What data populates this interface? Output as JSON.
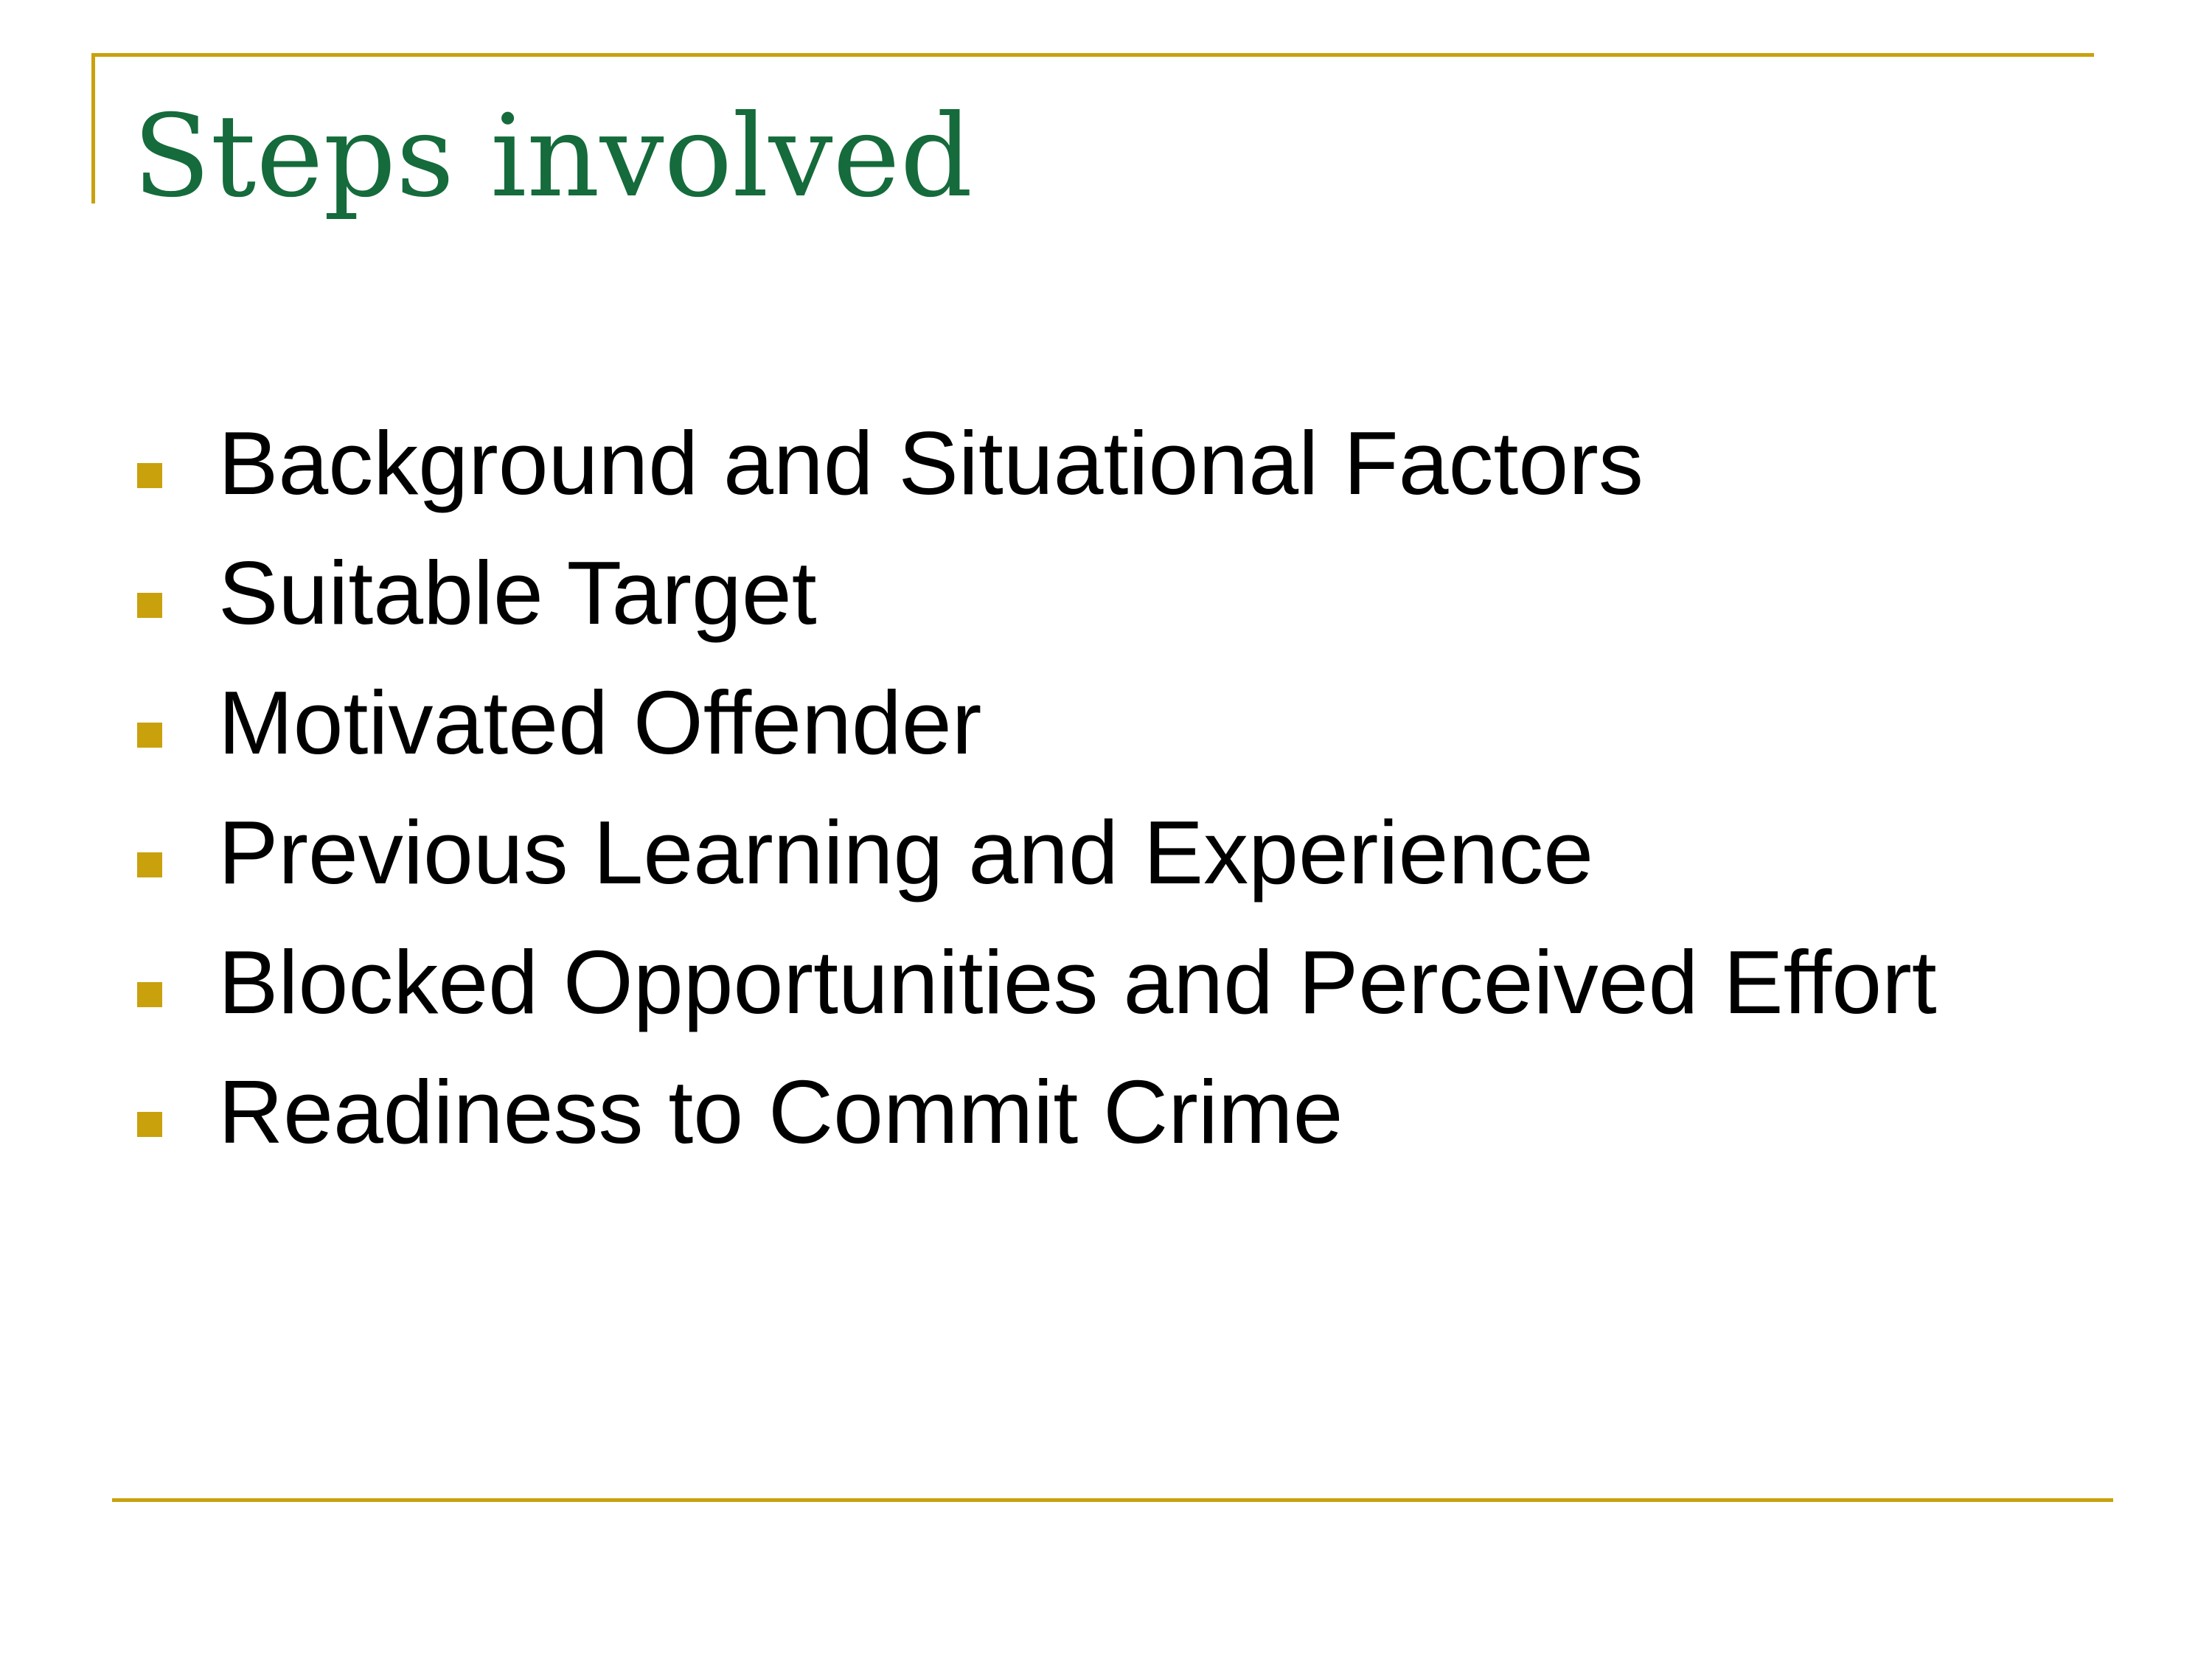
{
  "slide": {
    "title": "Steps involved",
    "accent_color": "#c9a10c",
    "title_color": "#156b3b",
    "bullets": [
      {
        "label": "Background and Situational Factors"
      },
      {
        "label": "Suitable Target"
      },
      {
        "label": "Motivated Offender"
      },
      {
        "label": "Previous Learning and Experience"
      },
      {
        "label": "Blocked Opportunities and Perceived Effort"
      },
      {
        "label": "Readiness to Commit Crime"
      }
    ]
  }
}
